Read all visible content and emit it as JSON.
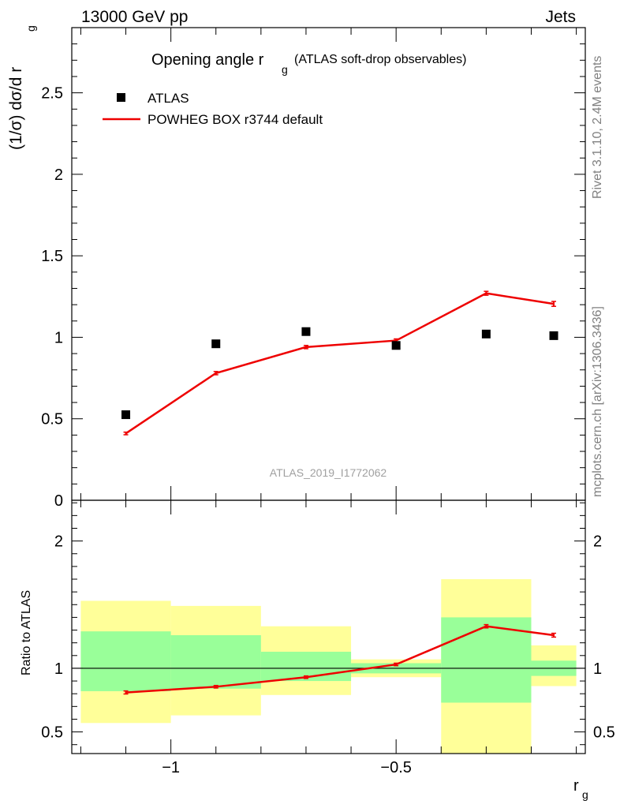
{
  "header": {
    "left": "13000 GeV pp",
    "right": "Jets"
  },
  "title": {
    "main": "Opening angle r",
    "sub": "g",
    "suffix": "(ATLAS soft-drop observables)"
  },
  "side_labels": {
    "rivet": "Rivet 3.1.10,  2.4M events",
    "mcplots": "mcplots.cern.ch [arXiv:1306.3436]"
  },
  "watermark": "ATLAS_2019_I1772062",
  "legend": {
    "data": "ATLAS",
    "mc": "POWHEG BOX r3744 default"
  },
  "axes": {
    "top_ylabel": "(1/σ) dσ/d r",
    "top_ylabel_sub": "g",
    "bottom_ylabel": "Ratio to ATLAS",
    "xlabel": "r",
    "xlabel_sub": "g"
  },
  "colors": {
    "data_marker": "#000000",
    "mc_line": "#ee0000",
    "band_inner": "#99ff99",
    "band_outer": "#ffff99"
  },
  "chart_data": [
    {
      "type": "scatter",
      "title": "Opening angle r_g (ATLAS soft-drop observables)",
      "xlabel": "r_g",
      "ylabel": "(1/σ) dσ/d r_g",
      "xlim": [
        -1.22,
        -0.08
      ],
      "ylim": [
        0,
        2.9
      ],
      "yticks": [
        0.5,
        1,
        1.5,
        2,
        2.5
      ],
      "ytick_labels": [
        "0.5",
        "1",
        "1.5",
        "2",
        "2.5"
      ],
      "xticks": [
        -1,
        -0.5
      ],
      "bin_edges": [
        -1.2,
        -1.0,
        -0.8,
        -0.6,
        -0.4,
        -0.2,
        -0.1
      ],
      "x": [
        -1.1,
        -0.9,
        -0.7,
        -0.5,
        -0.3,
        -0.15
      ],
      "series": [
        {
          "name": "ATLAS",
          "values": [
            0.525,
            0.96,
            1.035,
            0.95,
            1.02,
            1.01
          ]
        },
        {
          "name": "POWHEG BOX r3744 default",
          "values": [
            0.41,
            0.78,
            0.94,
            0.98,
            1.27,
            1.205
          ],
          "errors": [
            0.008,
            0.01,
            0.01,
            0.01,
            0.012,
            0.015
          ]
        }
      ],
      "grid": false,
      "legend_position": "top-left"
    },
    {
      "type": "area",
      "title": "",
      "xlabel": "r_g",
      "ylabel": "Ratio to ATLAS",
      "xlim": [
        -1.22,
        -0.08
      ],
      "ylim": [
        0.33,
        2.32
      ],
      "yticks": [
        0.5,
        1,
        2
      ],
      "ytick_labels": [
        "0.5",
        "1",
        "2"
      ],
      "xticks": [
        -1,
        -0.5
      ],
      "xtick_labels": [
        "−1",
        "−0.5"
      ],
      "bin_edges": [
        -1.2,
        -1.0,
        -0.8,
        -0.6,
        -0.4,
        -0.2,
        -0.1
      ],
      "bands": [
        {
          "name": "outer",
          "low": [
            0.57,
            0.63,
            0.79,
            0.93,
            0.2,
            0.86
          ],
          "high": [
            1.53,
            1.49,
            1.33,
            1.07,
            1.7,
            1.18
          ]
        },
        {
          "name": "inner",
          "low": [
            0.82,
            0.84,
            0.9,
            0.96,
            0.73,
            0.94
          ],
          "high": [
            1.29,
            1.26,
            1.13,
            1.04,
            1.4,
            1.06
          ]
        }
      ],
      "x": [
        -1.1,
        -0.9,
        -0.7,
        -0.5,
        -0.3,
        -0.15
      ],
      "series": [
        {
          "name": "POWHEG BOX r3744 default",
          "values": [
            0.81,
            0.855,
            0.93,
            1.03,
            1.33,
            1.26
          ],
          "errors": [
            0.012,
            0.01,
            0.01,
            0.01,
            0.013,
            0.015
          ]
        }
      ],
      "reference_line": 1
    }
  ]
}
